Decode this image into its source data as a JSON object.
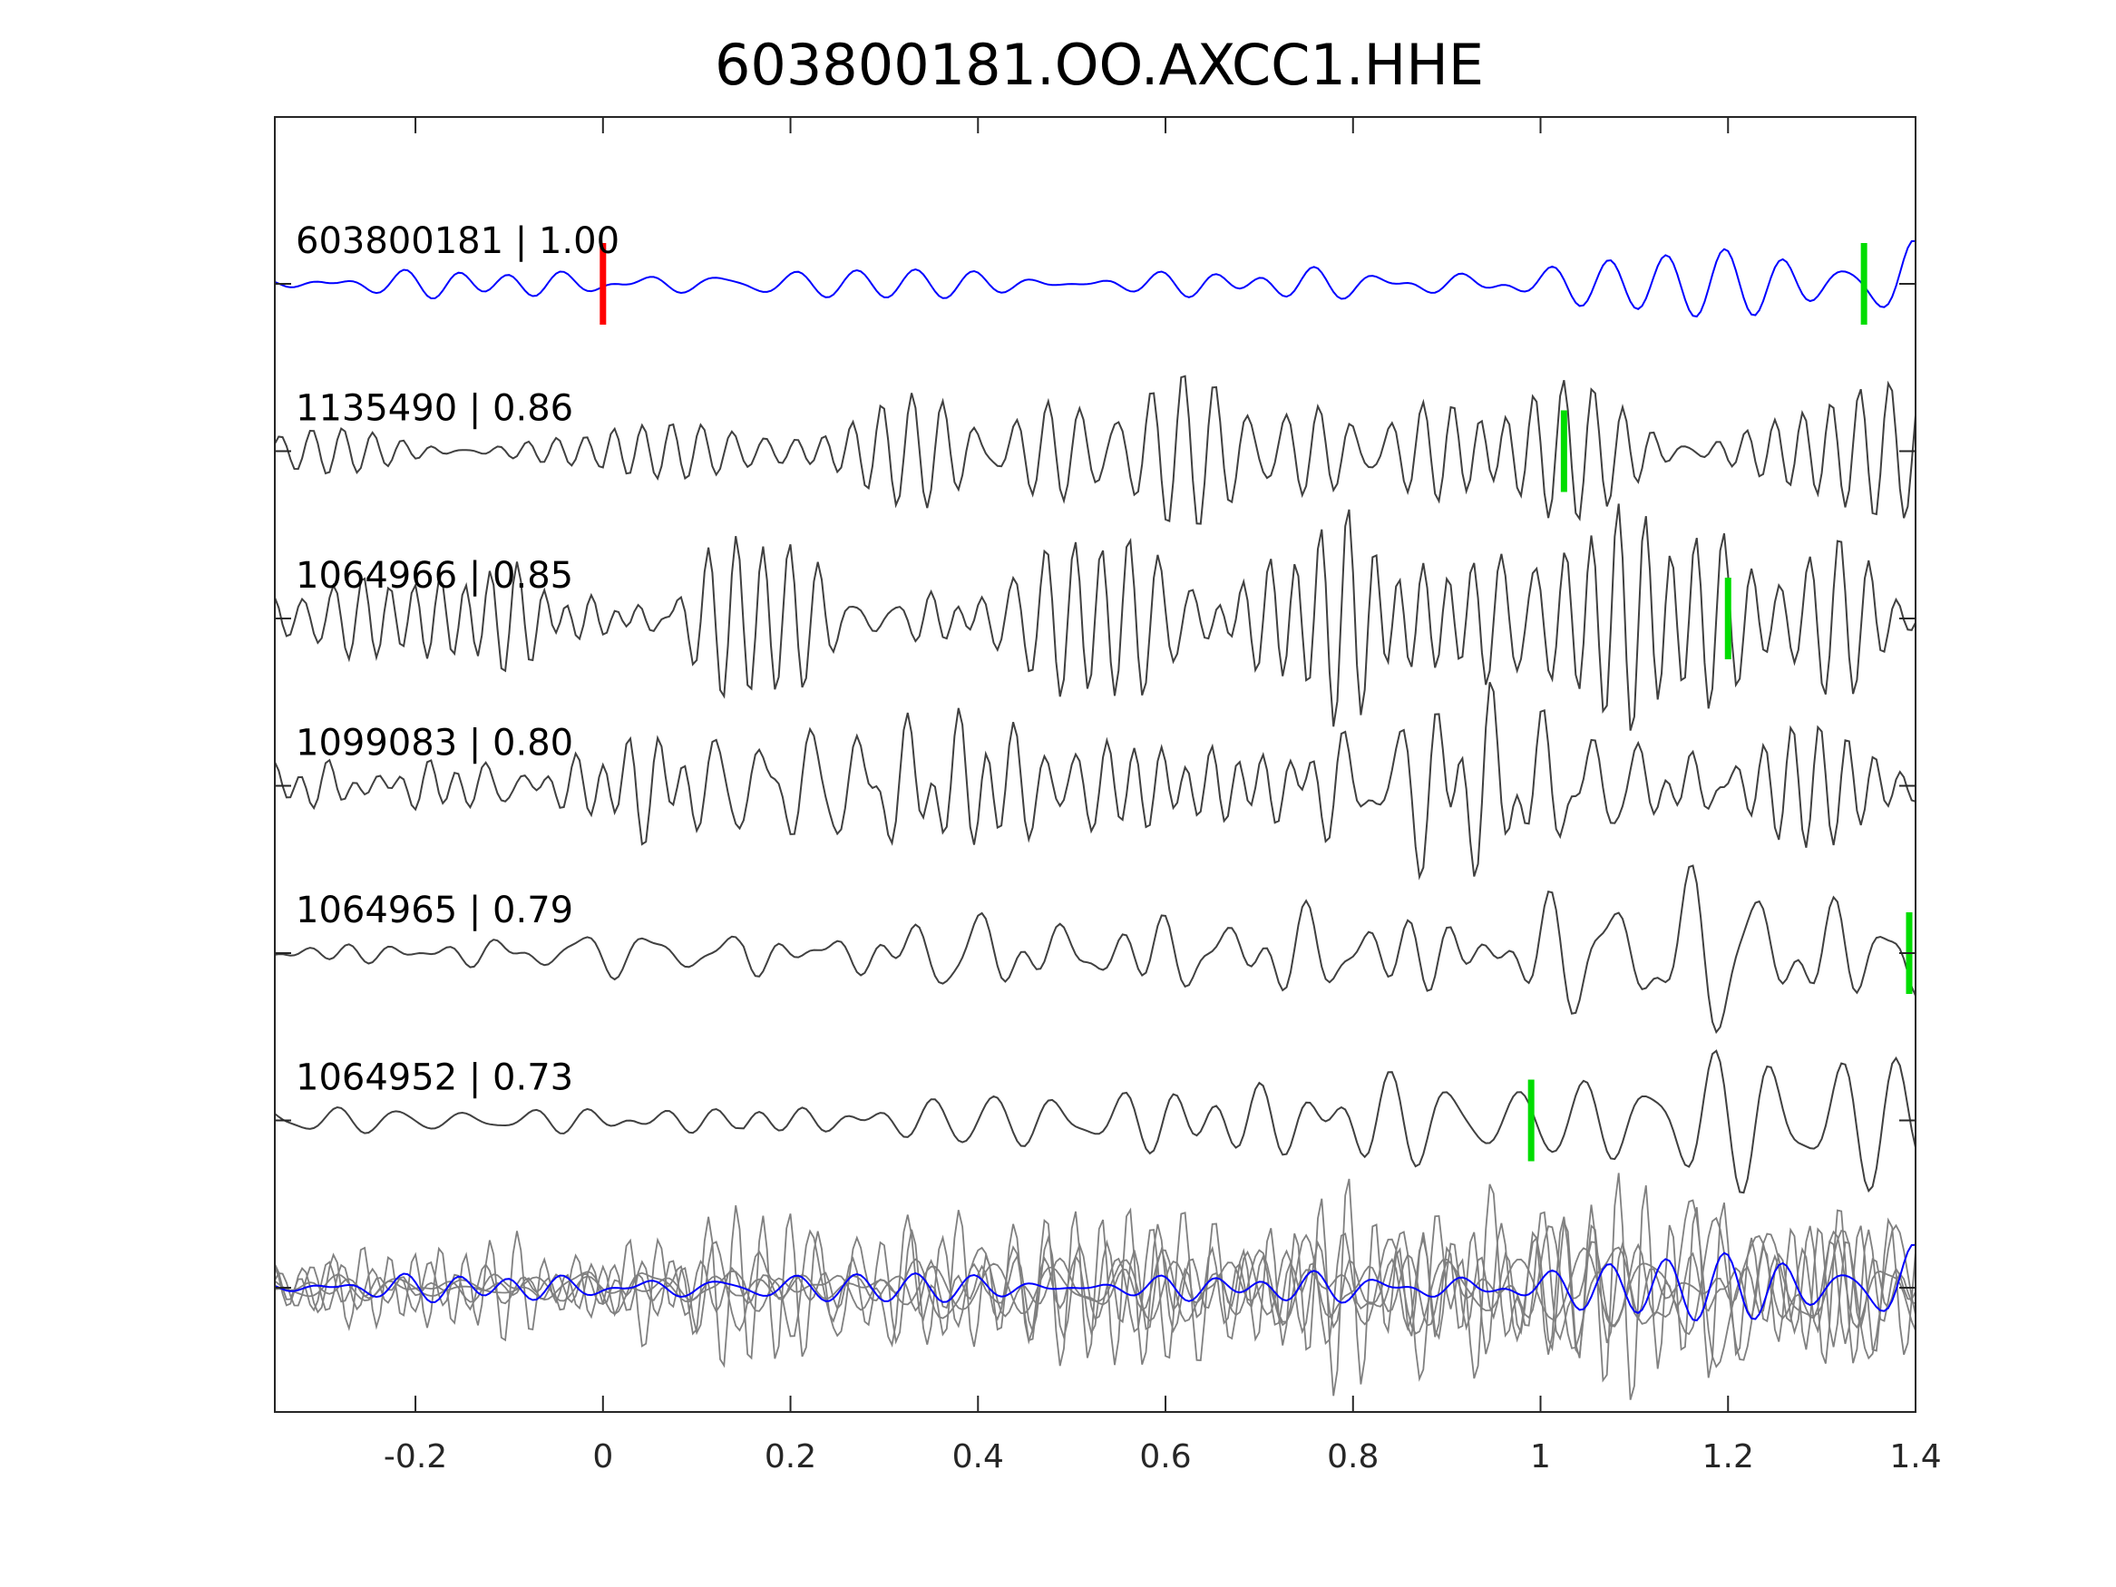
{
  "chart_data": {
    "type": "line",
    "title": "603800181.OO.AXCC1.HHE",
    "xlabel": "",
    "ylabel": "",
    "xlim": [
      -0.35,
      1.4
    ],
    "xticks": [
      -0.2,
      0,
      0.2,
      0.4,
      0.6,
      0.8,
      1,
      1.2,
      1.4
    ],
    "xtick_labels": [
      "-0.2",
      "0",
      "0.2",
      "0.4",
      "0.6",
      "0.8",
      "1",
      "1.2",
      "1.4"
    ],
    "grid": false,
    "colors": {
      "reference": "#0000ff",
      "neighbor": "#404040",
      "stack": "#808080",
      "origin_pick": "#ff0000",
      "phase_pick": "#00dd00"
    },
    "traces": [
      {
        "id": "603800181",
        "cc": "1.00",
        "label": "603800181 | 1.00",
        "color": "reference",
        "origin_pick": 0,
        "pick": 1.345,
        "seed": 11,
        "onset": 0.85,
        "freq": 14
      },
      {
        "id": "1135490",
        "cc": "0.86",
        "label": "1135490 | 0.86",
        "color": "neighbor",
        "pick": 1.025,
        "seed": 23,
        "onset": 0.0,
        "freq": 24
      },
      {
        "id": "1064966",
        "cc": "0.85",
        "label": "1064966 | 0.85",
        "color": "neighbor",
        "pick": 1.2,
        "seed": 37,
        "onset": -0.35,
        "freq": 26
      },
      {
        "id": "1099083",
        "cc": "0.80",
        "label": "1099083 | 0.80",
        "color": "neighbor",
        "pick": null,
        "seed": 41,
        "onset": -0.35,
        "freq": 25
      },
      {
        "id": "1064965",
        "cc": "0.79",
        "label": "1064965 | 0.79",
        "color": "neighbor",
        "pick": 1.395,
        "seed": 53,
        "onset": 0.15,
        "freq": 18
      },
      {
        "id": "1064952",
        "cc": "0.73",
        "label": "1064952 | 0.73",
        "color": "neighbor",
        "pick": 0.99,
        "seed": 67,
        "onset": 0.15,
        "freq": 18
      }
    ],
    "overlay": {
      "description_row": "all traces superimposed",
      "includes": "all"
    }
  }
}
